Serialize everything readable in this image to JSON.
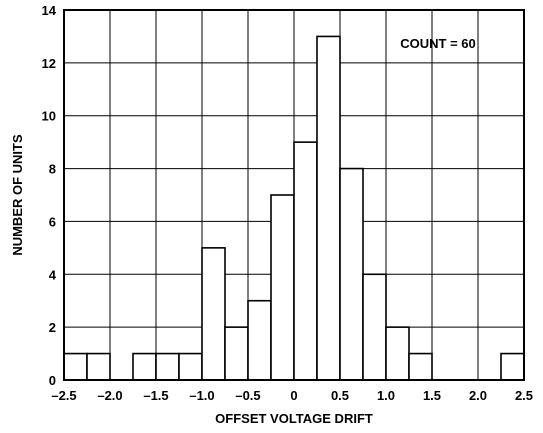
{
  "chart_data": {
    "type": "bar",
    "subtype": "histogram",
    "xlabel": "OFFSET VOLTAGE DRIFT",
    "ylabel": "NUMBER OF UNITS",
    "annotation": "COUNT = 60",
    "xlim": [
      -2.5,
      2.5
    ],
    "ylim": [
      0,
      14
    ],
    "grid": true,
    "x_ticks": [
      "–2.5",
      "–2.0",
      "–1.5",
      "–1.0",
      "–0.5",
      "0",
      "0.5",
      "1.0",
      "1.5",
      "2.0",
      "2.5"
    ],
    "x_tick_values": [
      -2.5,
      -2.0,
      -1.5,
      -1.0,
      -0.5,
      0,
      0.5,
      1.0,
      1.5,
      2.0,
      2.5
    ],
    "y_ticks": [
      "0",
      "2",
      "4",
      "6",
      "8",
      "10",
      "12",
      "14"
    ],
    "y_tick_values": [
      0,
      2,
      4,
      6,
      8,
      10,
      12,
      14
    ],
    "bin_width": 0.25,
    "bins": [
      {
        "x0": -2.5,
        "value": 1
      },
      {
        "x0": -2.25,
        "value": 1
      },
      {
        "x0": -1.75,
        "value": 1
      },
      {
        "x0": -1.5,
        "value": 1
      },
      {
        "x0": -1.25,
        "value": 1
      },
      {
        "x0": -1.0,
        "value": 5
      },
      {
        "x0": -0.75,
        "value": 2
      },
      {
        "x0": -0.5,
        "value": 3
      },
      {
        "x0": -0.25,
        "value": 7
      },
      {
        "x0": 0.0,
        "value": 9
      },
      {
        "x0": 0.25,
        "value": 13
      },
      {
        "x0": 0.5,
        "value": 8
      },
      {
        "x0": 0.75,
        "value": 4
      },
      {
        "x0": 1.0,
        "value": 2
      },
      {
        "x0": 1.25,
        "value": 1
      },
      {
        "x0": 2.25,
        "value": 1
      }
    ]
  }
}
